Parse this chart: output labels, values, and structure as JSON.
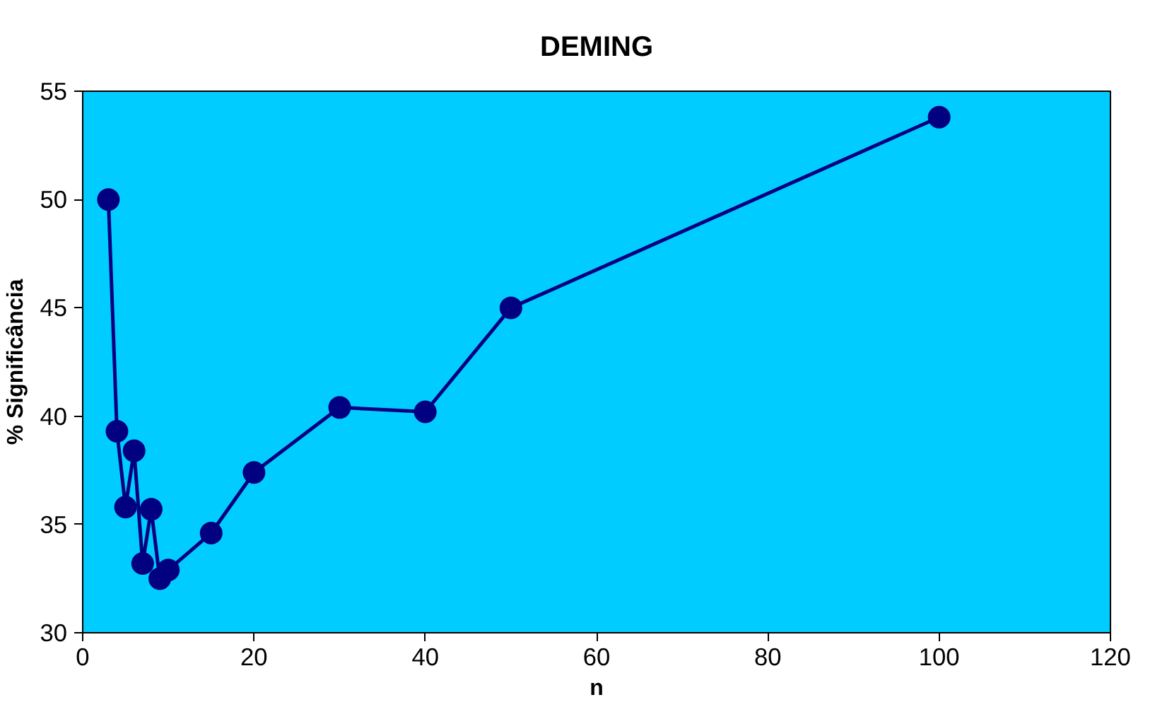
{
  "chart_data": {
    "type": "line",
    "title": "DEMING",
    "xlabel": "n",
    "ylabel": "% Significância",
    "x": [
      3,
      4,
      5,
      6,
      7,
      8,
      9,
      10,
      15,
      20,
      30,
      40,
      50,
      100
    ],
    "series": [
      {
        "color": "#000080",
        "values": [
          50,
          39.3,
          35.8,
          38.4,
          33.2,
          35.7,
          32.5,
          32.9,
          34.6,
          37.4,
          40.4,
          40.2,
          45,
          53.8
        ]
      }
    ],
    "xlim": [
      0,
      120
    ],
    "xticks": [
      0,
      20,
      40,
      60,
      80,
      100,
      120
    ],
    "ylim": [
      30,
      55
    ],
    "yticks": [
      30,
      35,
      40,
      45,
      50,
      55
    ],
    "grid": false,
    "marker": "circle",
    "line_style": "solid"
  }
}
